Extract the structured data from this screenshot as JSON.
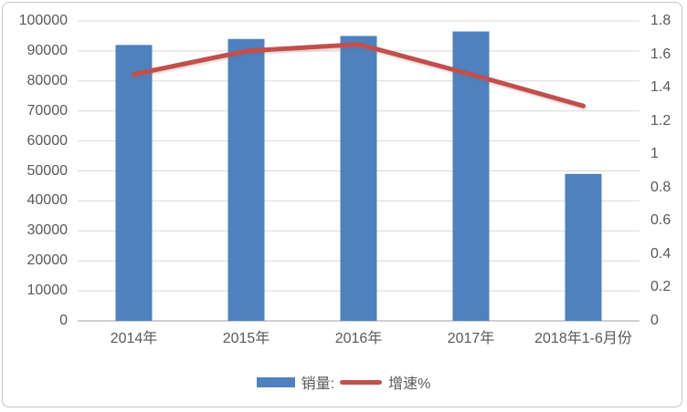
{
  "chart_data": {
    "type": "combo-bar-line",
    "categories": [
      "2014年",
      "2015年",
      "2016年",
      "2017年",
      "2018年1-6月份"
    ],
    "series": [
      {
        "name": "销量:",
        "type": "bar",
        "axis": "left",
        "color": "#4e81bd",
        "values": [
          92000,
          94000,
          95000,
          96500,
          49000
        ]
      },
      {
        "name": "增速%",
        "type": "line",
        "axis": "right",
        "color": "#c0504d",
        "values": [
          1.48,
          1.62,
          1.66,
          1.48,
          1.29
        ]
      }
    ],
    "left_axis": {
      "min": 0,
      "max": 100000,
      "step": 10000,
      "tick_labels": [
        "0",
        "10000",
        "20000",
        "30000",
        "40000",
        "50000",
        "60000",
        "70000",
        "80000",
        "90000",
        "100000"
      ]
    },
    "right_axis": {
      "min": 0,
      "max": 1.8,
      "step": 0.2,
      "tick_labels": [
        "0",
        "0.2",
        "0.4",
        "0.6",
        "0.8",
        "1",
        "1.2",
        "1.4",
        "1.6",
        "1.8"
      ]
    },
    "legend_position": "bottom",
    "grid": true,
    "colors": {
      "bar": "#4e81bd",
      "line": "#c0504d",
      "gridline": "#d9d9d9",
      "axis_line": "#bfbfbf",
      "text": "#595959",
      "border": "#c4c4c4",
      "background": "#ffffff"
    }
  }
}
